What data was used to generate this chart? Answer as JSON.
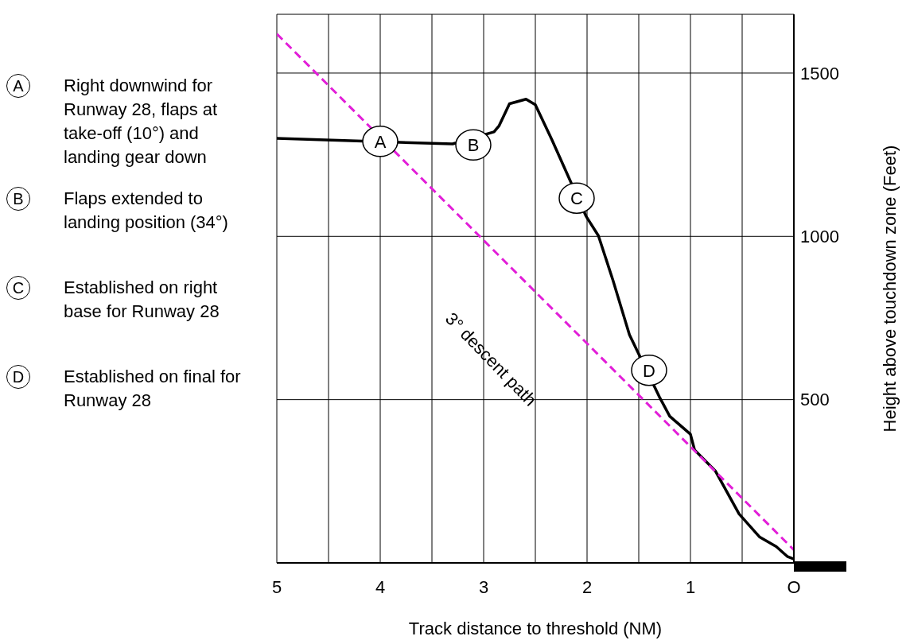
{
  "chart_data": {
    "type": "line",
    "xlabel": "Track distance to threshold (NM)",
    "ylabel": "Height above touchdown zone (Feet)",
    "xlim": [
      5,
      0
    ],
    "xticks": [
      5,
      {
        "value": 4.5,
        "label": null
      },
      4,
      {
        "value": 3.5,
        "label": null
      },
      3,
      {
        "value": 2.5,
        "label": null
      },
      2,
      {
        "value": 1.5,
        "label": null
      },
      1,
      {
        "value": 0.5,
        "label": null
      },
      {
        "value": 0,
        "label": "O"
      }
    ],
    "ylim": [
      0,
      1680
    ],
    "yticks": [
      500,
      1000,
      1500
    ],
    "grid": true,
    "marker": "none",
    "series": [
      {
        "color": "#000000",
        "line_style": "solid",
        "x": [
          5.0,
          3.3,
          2.9,
          2.85,
          2.75,
          2.59,
          2.5,
          2.34,
          2.01,
          1.89,
          1.75,
          1.59,
          1.3,
          1.2,
          1.0,
          0.96,
          0.76,
          0.53,
          0.33,
          0.17,
          0.06,
          0
        ],
        "values": [
          1300,
          1283,
          1320,
          1339,
          1406,
          1420,
          1403,
          1296,
          1062,
          1002,
          866,
          699,
          508,
          449,
          394,
          346,
          282,
          150,
          79,
          50,
          19,
          12
        ]
      },
      {
        "color": "#e21ed8",
        "line_style": "dashed",
        "x": [
          5,
          0
        ],
        "values": [
          1620,
          40
        ]
      }
    ],
    "annotations": [
      {
        "text": "A",
        "x": 4.0,
        "y": 1291
      },
      {
        "text": "B",
        "x": 3.1,
        "y": 1280
      },
      {
        "text": "C",
        "x": 2.1,
        "y": 1117
      },
      {
        "text": "D",
        "x": 1.4,
        "y": 590
      },
      "3° descent path",
      "Right downwind for Runway 28, flaps at take-off (10°) and landing gear down",
      "Flaps extended to landing position (34°)",
      "Established on right base for Runway 28",
      "Established on final for Runway 28"
    ]
  }
}
